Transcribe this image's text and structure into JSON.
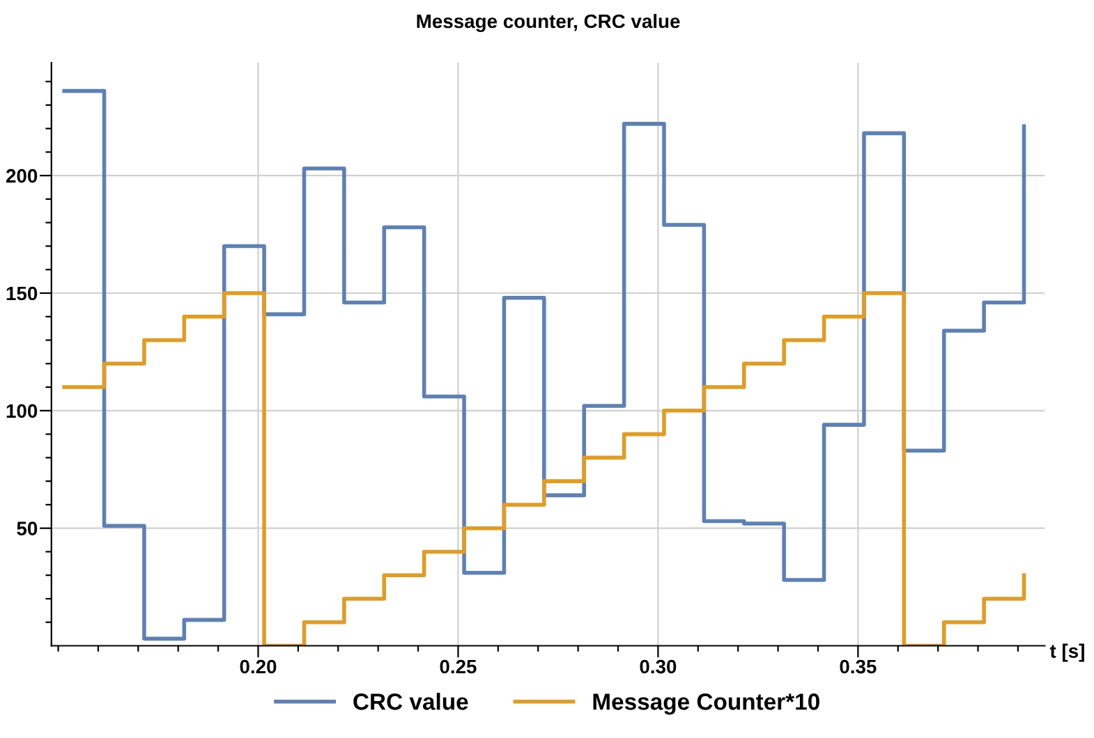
{
  "chart_data": {
    "type": "step",
    "title": "Message counter, CRC value",
    "xlabel": "t [s]",
    "x": [
      0.1515,
      0.1615,
      0.1715,
      0.1815,
      0.1915,
      0.2015,
      0.2115,
      0.2215,
      0.2315,
      0.2415,
      0.2515,
      0.2615,
      0.2715,
      0.2815,
      0.2915,
      0.3015,
      0.3115,
      0.3215,
      0.3315,
      0.3415,
      0.3515,
      0.3615,
      0.3715,
      0.3815,
      0.3915
    ],
    "series": [
      {
        "name": "CRC value",
        "color": "#5e81b5",
        "values": [
          236,
          51,
          3,
          11,
          170,
          141,
          203,
          146,
          178,
          106,
          31,
          148,
          64,
          102,
          222,
          179,
          53,
          52,
          28,
          94,
          218,
          83,
          134,
          146,
          221
        ]
      },
      {
        "name": "Message Counter*10",
        "color": "#e19c24",
        "values": [
          110,
          120,
          130,
          140,
          150,
          0,
          10,
          20,
          30,
          40,
          50,
          60,
          70,
          80,
          90,
          100,
          110,
          120,
          130,
          140,
          150,
          0,
          10,
          20,
          30
        ]
      }
    ],
    "xlim": [
      0.1483,
      0.3967
    ],
    "ylim": [
      0,
      248
    ],
    "xticks": [
      {
        "value": 0.15,
        "label": null
      },
      {
        "value": 0.16,
        "label": null
      },
      {
        "value": 0.17,
        "label": null
      },
      {
        "value": 0.18,
        "label": null
      },
      {
        "value": 0.19,
        "label": null
      },
      {
        "value": 0.2,
        "label": "0.20"
      },
      {
        "value": 0.21,
        "label": null
      },
      {
        "value": 0.22,
        "label": null
      },
      {
        "value": 0.23,
        "label": null
      },
      {
        "value": 0.24,
        "label": null
      },
      {
        "value": 0.25,
        "label": "0.25"
      },
      {
        "value": 0.26,
        "label": null
      },
      {
        "value": 0.27,
        "label": null
      },
      {
        "value": 0.28,
        "label": null
      },
      {
        "value": 0.29,
        "label": null
      },
      {
        "value": 0.3,
        "label": "0.30"
      },
      {
        "value": 0.31,
        "label": null
      },
      {
        "value": 0.32,
        "label": null
      },
      {
        "value": 0.33,
        "label": null
      },
      {
        "value": 0.34,
        "label": null
      },
      {
        "value": 0.35,
        "label": "0.35"
      },
      {
        "value": 0.36,
        "label": null
      },
      {
        "value": 0.37,
        "label": null
      },
      {
        "value": 0.38,
        "label": null
      },
      {
        "value": 0.39,
        "label": null
      }
    ],
    "yticks": [
      {
        "value": 10,
        "label": null
      },
      {
        "value": 20,
        "label": null
      },
      {
        "value": 30,
        "label": null
      },
      {
        "value": 40,
        "label": null
      },
      50,
      {
        "value": 60,
        "label": null
      },
      {
        "value": 70,
        "label": null
      },
      {
        "value": 80,
        "label": null
      },
      {
        "value": 90,
        "label": null
      },
      100,
      {
        "value": 110,
        "label": null
      },
      {
        "value": 120,
        "label": null
      },
      {
        "value": 130,
        "label": null
      },
      {
        "value": 140,
        "label": null
      },
      150,
      {
        "value": 160,
        "label": null
      },
      {
        "value": 170,
        "label": null
      },
      {
        "value": 180,
        "label": null
      },
      {
        "value": 190,
        "label": null
      },
      200,
      {
        "value": 210,
        "label": null
      },
      {
        "value": 220,
        "label": null
      },
      {
        "value": 230,
        "label": null
      },
      {
        "value": 240,
        "label": null
      }
    ],
    "grid": true,
    "legend": "bottom",
    "line_style": "solid",
    "marker": "none"
  }
}
